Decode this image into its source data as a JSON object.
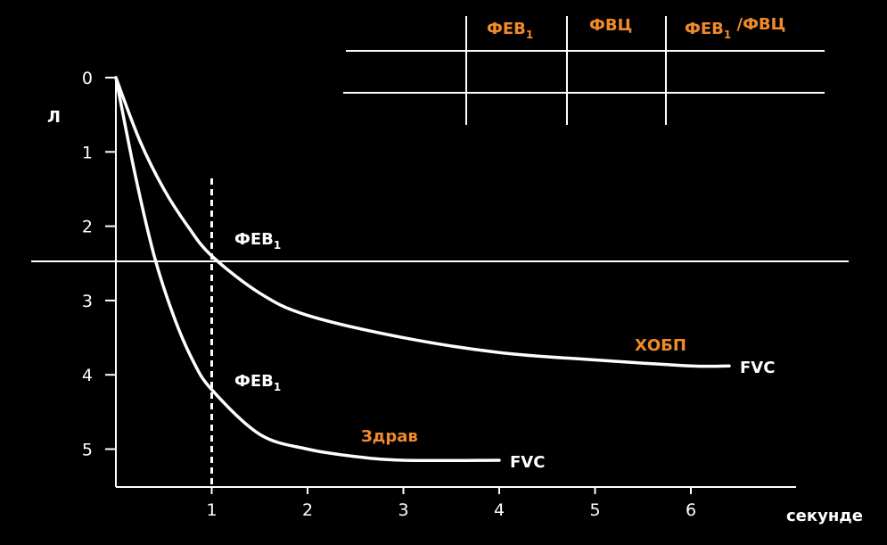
{
  "chart_data": {
    "type": "line",
    "title": "",
    "xlabel": "секунде",
    "ylabel": "Л",
    "x_ticks": [
      "1",
      "2",
      "3",
      "4",
      "5",
      "6"
    ],
    "y_ticks": [
      "0",
      "1",
      "2",
      "3",
      "4",
      "5"
    ],
    "xlim": [
      0,
      7.2
    ],
    "ylim": [
      0,
      5.5
    ],
    "y_inverted": true,
    "reference_line": {
      "x": 1,
      "style": "dashed"
    },
    "series": [
      {
        "name": "ХОБП",
        "end_label": "FVC",
        "x": [
          0,
          0.25,
          0.5,
          0.75,
          1,
          1.5,
          2,
          3,
          4,
          5,
          6,
          6.4
        ],
        "y": [
          0,
          0.85,
          1.5,
          2.0,
          2.4,
          2.9,
          3.2,
          3.5,
          3.7,
          3.8,
          3.88,
          3.88
        ]
      },
      {
        "name": "Здрав",
        "end_label": "FVC",
        "x": [
          0,
          0.2,
          0.4,
          0.6,
          0.8,
          1,
          1.5,
          2,
          2.5,
          3,
          4
        ],
        "y": [
          0,
          1.3,
          2.4,
          3.2,
          3.8,
          4.2,
          4.8,
          5.0,
          5.1,
          5.15,
          5.15
        ]
      }
    ],
    "point_labels": [
      {
        "text": "ФЕВ",
        "sub": "1",
        "series": "ХОБП"
      },
      {
        "text": "ФЕВ",
        "sub": "1",
        "series": "Здрав"
      }
    ],
    "colors": {
      "background": "#000000",
      "line": "#ffffff",
      "accent": "#f08a2b"
    }
  },
  "table": {
    "headers": [
      {
        "text": "ФЕВ",
        "sub": "1",
        "suffix": ""
      },
      {
        "text": "ФВЦ",
        "sub": "",
        "suffix": ""
      },
      {
        "text": "ФЕВ",
        "sub": "1",
        "suffix": " /ФВЦ"
      }
    ]
  }
}
